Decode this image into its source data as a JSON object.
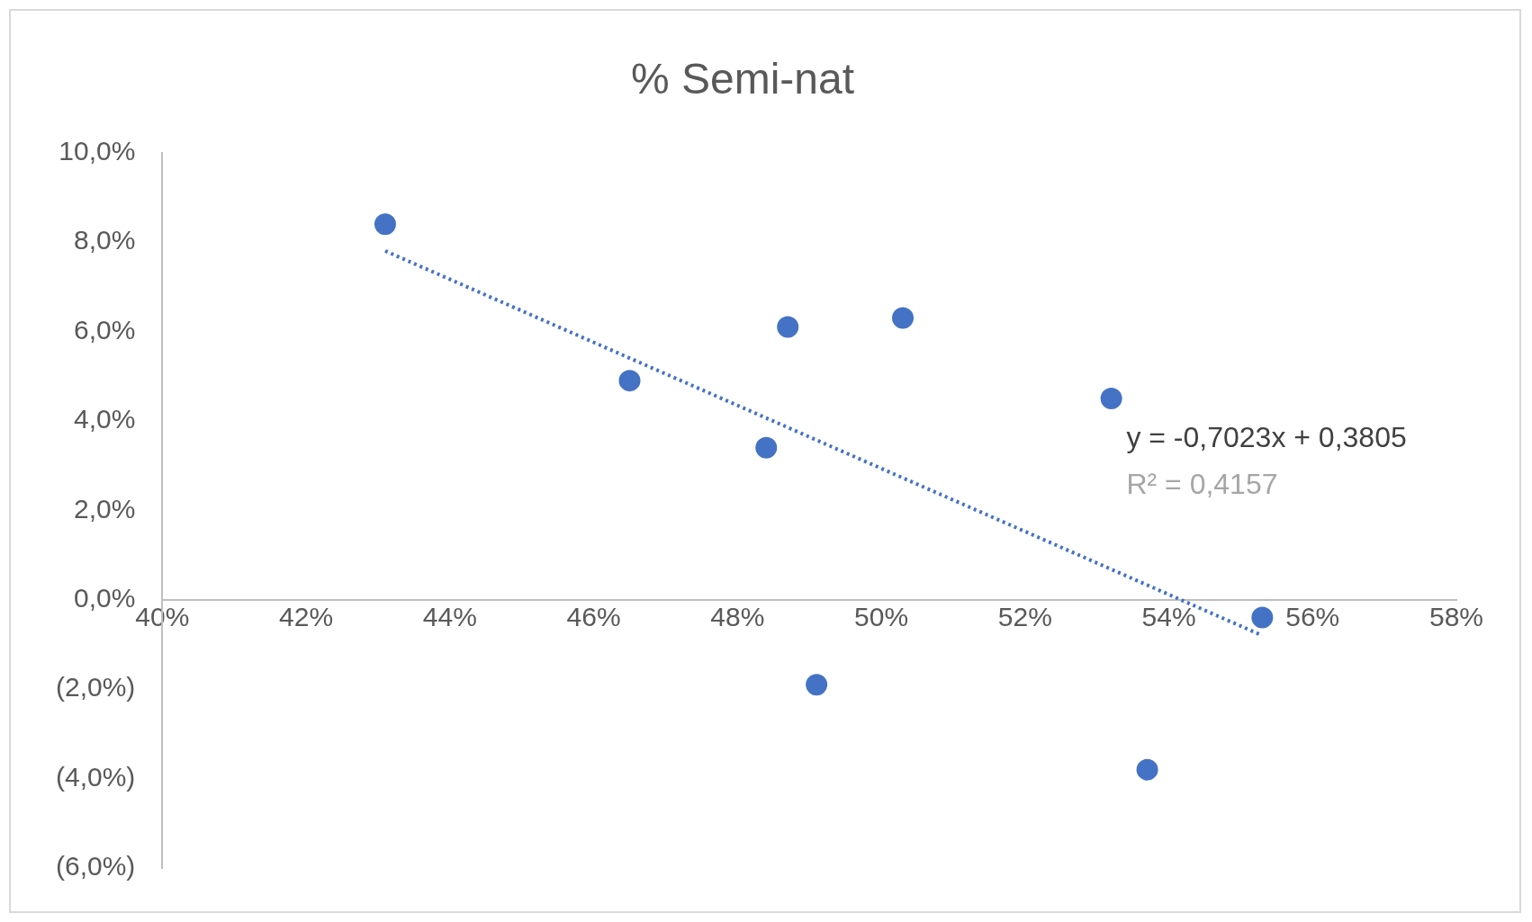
{
  "chart_data": {
    "type": "scatter",
    "title": "% Semi-nat",
    "xlim": [
      40,
      58
    ],
    "xticks": [
      {
        "value": 40,
        "label": "40%"
      },
      {
        "value": 42,
        "label": "42%"
      },
      {
        "value": 44,
        "label": "44%"
      },
      {
        "value": 46,
        "label": "46%"
      },
      {
        "value": 48,
        "label": "48%"
      },
      {
        "value": 50,
        "label": "50%"
      },
      {
        "value": 52,
        "label": "52%"
      },
      {
        "value": 54,
        "label": "54%"
      },
      {
        "value": 56,
        "label": "56%"
      },
      {
        "value": 58,
        "label": "58%"
      }
    ],
    "ylim": [
      -6,
      10
    ],
    "yticks": [
      {
        "value": -6,
        "label": "(6,0%)"
      },
      {
        "value": -4,
        "label": "(4,0%)"
      },
      {
        "value": -2,
        "label": "(2,0%)"
      },
      {
        "value": 0,
        "label": "0,0%"
      },
      {
        "value": 2,
        "label": "2,0%"
      },
      {
        "value": 4,
        "label": "4,0%"
      },
      {
        "value": 6,
        "label": "6,0%"
      },
      {
        "value": 8,
        "label": "8,0%"
      },
      {
        "value": 10,
        "label": "10,0%"
      }
    ],
    "grid": false,
    "legend": false,
    "series": [
      {
        "type": "scatter",
        "color": "#4472c4",
        "marker": "circle",
        "x": [
          43.1,
          46.5,
          48.4,
          48.7,
          49.1,
          50.3,
          53.2,
          53.7,
          55.3
        ],
        "values": [
          8.4,
          4.9,
          3.4,
          6.1,
          -1.9,
          6.3,
          4.5,
          -3.8,
          -0.4
        ]
      },
      {
        "type": "line",
        "color": "#4472c4",
        "marker": "none",
        "line_style": "dotted",
        "x": [
          43.1,
          55.3
        ],
        "values": [
          7.8,
          -0.8
        ]
      }
    ],
    "annotations": [
      "y = -0,7023x + 0,3805",
      "R² = 0,4157"
    ]
  }
}
